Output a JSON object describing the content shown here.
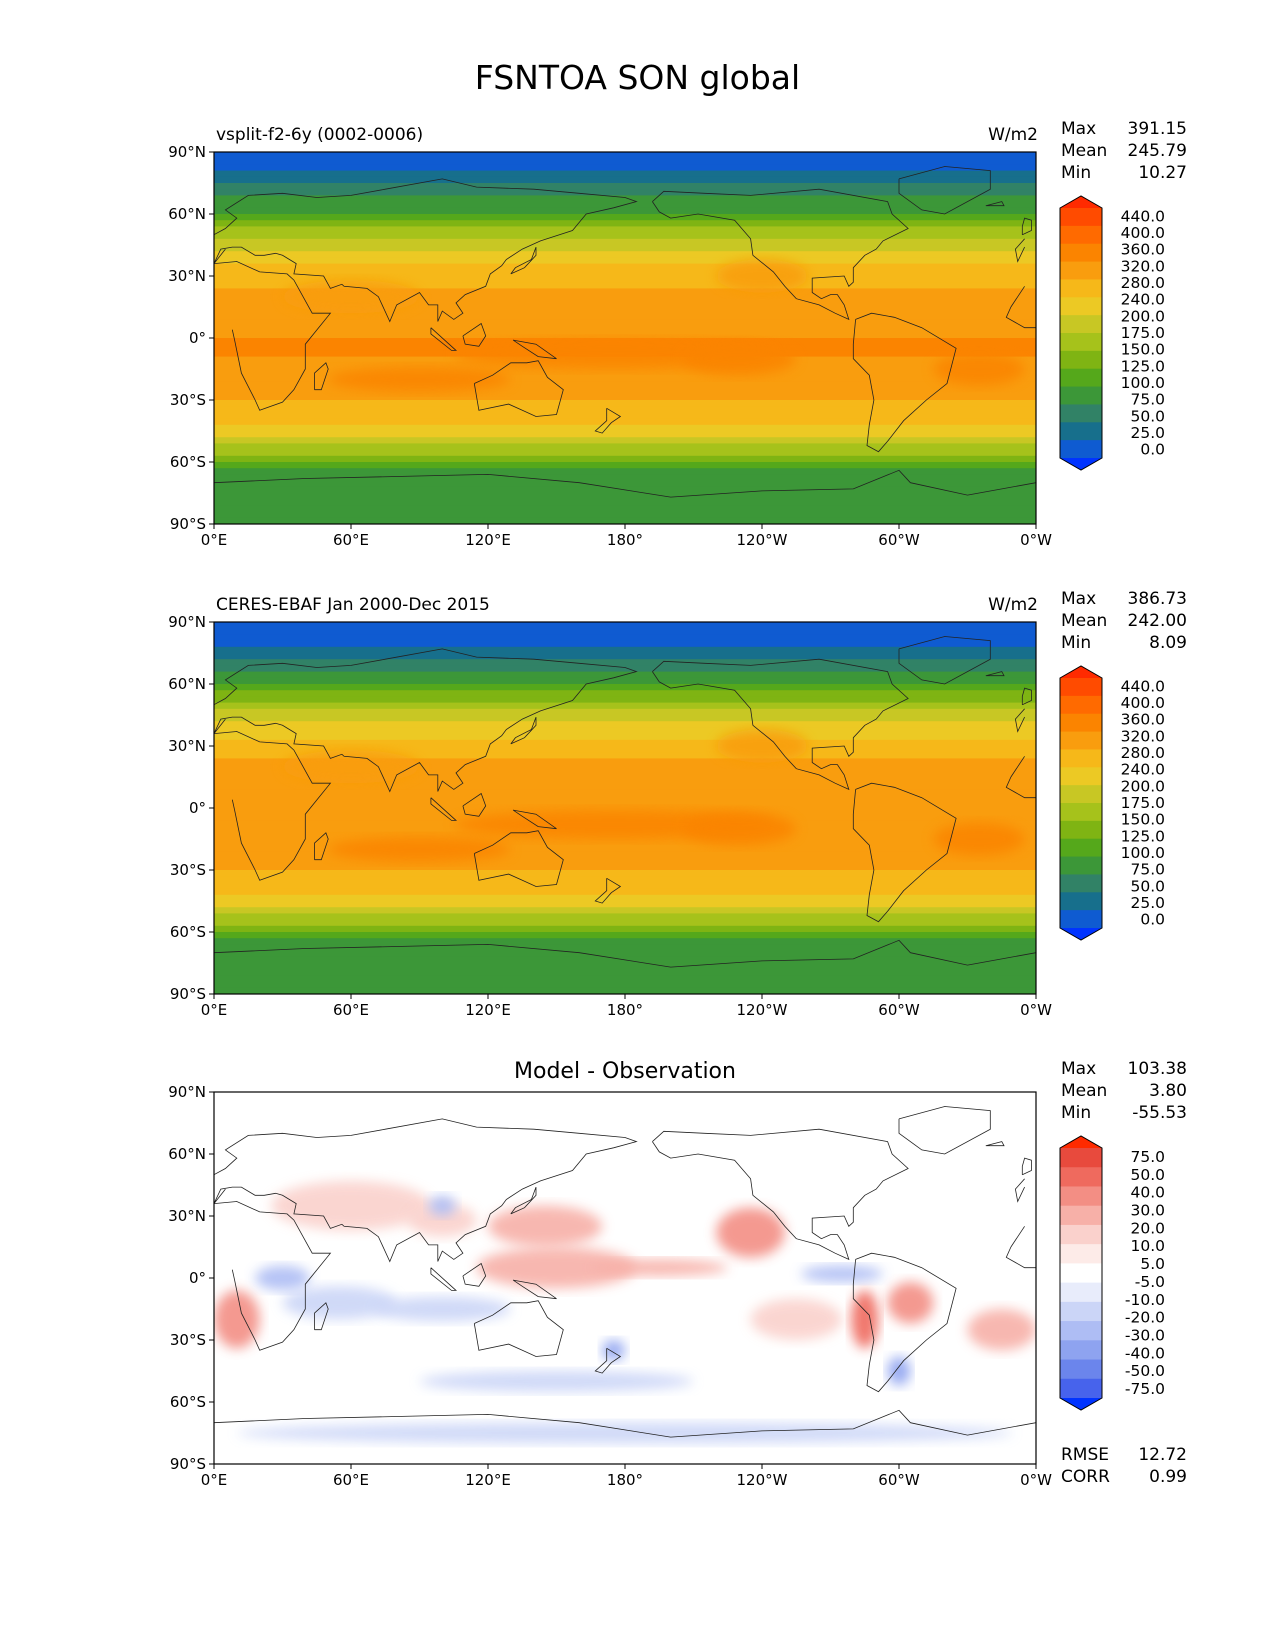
{
  "figure": {
    "title": "FSNTOA SON global"
  },
  "chart_data": [
    {
      "type": "heatmap",
      "panel": "model",
      "left_title": "vsplit-f2-6y (0002-0006)",
      "center_title": "",
      "units": "W/m2",
      "stats": {
        "max_label": "Max",
        "max": "391.15",
        "mean_label": "Mean",
        "mean": "245.79",
        "min_label": "Min",
        "min": "10.27"
      },
      "x_ticks": [
        "0°E",
        "60°E",
        "120°E",
        "180°",
        "120°W",
        "60°W",
        "0°W"
      ],
      "y_ticks": [
        "90°N",
        "60°N",
        "30°N",
        "0°",
        "30°S",
        "60°S",
        "90°S"
      ],
      "colorbar": {
        "levels": [
          "440.0",
          "400.0",
          "360.0",
          "320.0",
          "280.0",
          "240.0",
          "200.0",
          "175.0",
          "150.0",
          "125.0",
          "100.0",
          "75.0",
          "50.0",
          "25.0",
          "0.0"
        ],
        "colors": [
          "#ff2a00",
          "#ff4b00",
          "#ff6a00",
          "#fb8400",
          "#f99d0e",
          "#f6b819",
          "#ecc924",
          "#c8c724",
          "#a6c21b",
          "#7fb413",
          "#55a81b",
          "#3c9738",
          "#318266",
          "#176f8c",
          "#0f5bd1",
          "#0033ff"
        ]
      },
      "zonal_profile_lat": [
        -90,
        -75,
        -65,
        -60,
        -50,
        -40,
        -30,
        -20,
        -10,
        0,
        10,
        20,
        30,
        40,
        50,
        60,
        70,
        80,
        90
      ],
      "zonal_profile_wm2": [
        85,
        88,
        95,
        125,
        185,
        245,
        285,
        305,
        320,
        320,
        310,
        295,
        265,
        215,
        165,
        105,
        65,
        25,
        15
      ]
    },
    {
      "type": "heatmap",
      "panel": "observation",
      "left_title": "CERES-EBAF Jan 2000-Dec 2015",
      "center_title": "",
      "units": "W/m2",
      "stats": {
        "max_label": "Max",
        "max": "386.73",
        "mean_label": "Mean",
        "mean": "242.00",
        "min_label": "Min",
        "min": "8.09"
      },
      "x_ticks": [
        "0°E",
        "60°E",
        "120°E",
        "180°",
        "120°W",
        "60°W",
        "0°W"
      ],
      "y_ticks": [
        "90°N",
        "60°N",
        "30°N",
        "0°",
        "30°S",
        "60°S",
        "90°S"
      ],
      "colorbar": {
        "levels": [
          "440.0",
          "400.0",
          "360.0",
          "320.0",
          "280.0",
          "240.0",
          "200.0",
          "175.0",
          "150.0",
          "125.0",
          "100.0",
          "75.0",
          "50.0",
          "25.0",
          "0.0"
        ],
        "colors": [
          "#ff2a00",
          "#ff4b00",
          "#ff6a00",
          "#fb8400",
          "#f99d0e",
          "#f6b819",
          "#ecc924",
          "#c8c724",
          "#a6c21b",
          "#7fb413",
          "#55a81b",
          "#3c9738",
          "#318266",
          "#176f8c",
          "#0f5bd1",
          "#0033ff"
        ]
      },
      "zonal_profile_lat": [
        -90,
        -75,
        -65,
        -60,
        -50,
        -40,
        -30,
        -20,
        -10,
        0,
        10,
        20,
        30,
        40,
        50,
        60,
        70,
        80,
        90
      ],
      "zonal_profile_wm2": [
        85,
        88,
        95,
        125,
        185,
        245,
        285,
        305,
        315,
        312,
        305,
        290,
        262,
        212,
        162,
        102,
        62,
        22,
        12
      ]
    },
    {
      "type": "heatmap",
      "panel": "difference",
      "left_title": "",
      "center_title": "Model - Observation",
      "units": "",
      "stats": {
        "max_label": "Max",
        "max": "103.38",
        "mean_label": "Mean",
        "mean": "3.80",
        "min_label": "Min",
        "min": "-55.53"
      },
      "metrics": {
        "rmse_label": "RMSE",
        "rmse": "12.72",
        "corr_label": "CORR",
        "corr": "0.99"
      },
      "x_ticks": [
        "0°E",
        "60°E",
        "120°E",
        "180°",
        "120°W",
        "60°W",
        "0°W"
      ],
      "y_ticks": [
        "90°N",
        "60°N",
        "30°N",
        "0°",
        "30°S",
        "60°S",
        "90°S"
      ],
      "colorbar": {
        "levels": [
          "75.0",
          "50.0",
          "40.0",
          "30.0",
          "20.0",
          "10.0",
          "5.0",
          "-5.0",
          "-10.0",
          "-20.0",
          "-30.0",
          "-40.0",
          "-50.0",
          "-75.0"
        ],
        "colors": [
          "#ff2a00",
          "#e84a3d",
          "#ef6a5e",
          "#f38e84",
          "#f7b0a8",
          "#fad1cc",
          "#fdebe8",
          "#ffffff",
          "#e8ecfb",
          "#cbd5f7",
          "#aebdf4",
          "#8ea3f0",
          "#6b85ec",
          "#4763ec",
          "#0033ff"
        ]
      }
    }
  ]
}
